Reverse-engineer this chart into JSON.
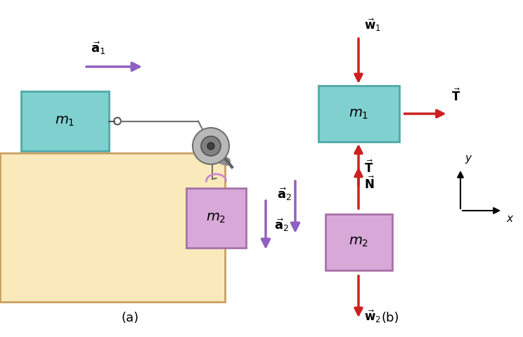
{
  "fig_width": 7.44,
  "fig_height": 4.8,
  "dpi": 100,
  "bg_color": "#ffffff",
  "table_color": "#faeabb",
  "table_edge_color": "#c8a060",
  "m1_color": "#80d0d0",
  "m1_edge_color": "#50a8a8",
  "m2_color": "#d8a8d8",
  "m2_edge_color": "#a870a8",
  "string_color": "#707070",
  "arrow_color_purple": "#9060c0",
  "arrow_color_red": "#cc2020",
  "part_a_label": "(a)",
  "part_b_label": "(b)",
  "m1_label": "$m_1$",
  "m2_label": "$m_2$",
  "a1_label": "$\\vec{\\mathbf{a}}_1$",
  "a2_label": "$\\vec{\\mathbf{a}}_2$",
  "T_label": "$\\vec{\\mathbf{T}}$",
  "N_label": "$\\vec{\\mathbf{N}}$",
  "w1_label": "$\\vec{\\mathbf{w}}_1$",
  "w2_label": "$\\vec{\\mathbf{w}}_2$",
  "x_label": "$x$",
  "y_label": "$y$"
}
